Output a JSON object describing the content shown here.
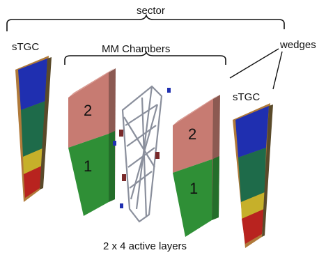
{
  "labels": {
    "sector": "sector",
    "wedges": "wedges",
    "stgc_left": "sTGC",
    "stgc_right": "sTGC",
    "mm_chambers": "MM Chambers",
    "layers_note": "2 x 4 active layers"
  },
  "chamber_numbers": {
    "mm_left_top": "2",
    "mm_left_bottom": "1",
    "mm_right_top": "2",
    "mm_right_bottom": "1"
  },
  "colors": {
    "stgc_blue": "#1f2fb0",
    "stgc_teal": "#1e6b4a",
    "stgc_yellow": "#c6b02a",
    "stgc_red": "#b8231f",
    "stgc_frame": "#b07a3a",
    "mm_red": "#c77b72",
    "mm_green": "#2f8f36",
    "spacer_frame": "#8a8f9c",
    "bracket_line": "#111111"
  }
}
